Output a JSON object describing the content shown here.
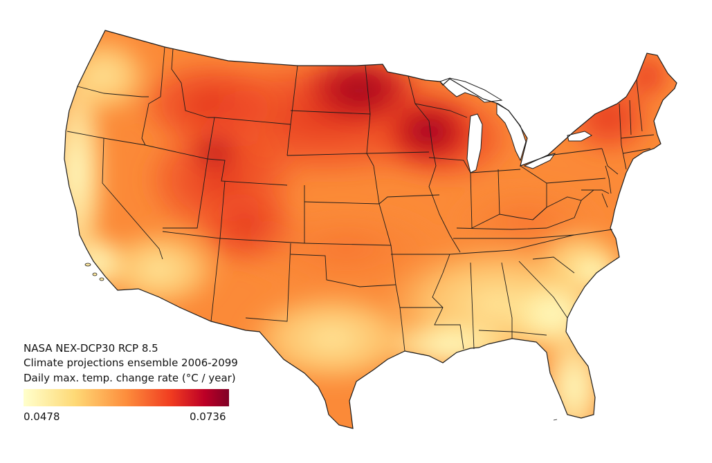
{
  "map": {
    "legend": {
      "lines": [
        "NASA NEX-DCP30 RCP 8.5",
        "Climate projections ensemble 2006-2099",
        "Daily max. temp. change rate (°C / year)"
      ],
      "min_label": "0.0478",
      "max_label": "0.0736",
      "colorscale": [
        "#ffffcc",
        "#fed976",
        "#fd8d3c",
        "#f03b20",
        "#bd0026",
        "#800026"
      ]
    },
    "colors": {
      "background": "#ffffff",
      "border": "#1a1a1a",
      "coast_low": "#ffffc4",
      "low": "#fecf6a",
      "mid": "#fb8c3a",
      "high": "#ef4023",
      "peak": "#c0101e",
      "lakes": "#ffffff"
    }
  }
}
